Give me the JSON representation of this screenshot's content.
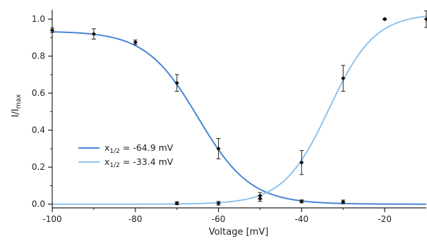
{
  "chart_data": {
    "type": "line",
    "title": "",
    "xlabel": "Voltage [mV]",
    "ylabel_main": "I/I",
    "ylabel_sub": "max",
    "xlim": [
      -100,
      -10
    ],
    "ylim": [
      -0.02,
      1.05
    ],
    "xticks": [
      -100,
      -80,
      -60,
      -40,
      -20
    ],
    "yticks": [
      0.0,
      0.2,
      0.4,
      0.6,
      0.8,
      1.0
    ],
    "xtick_labels": [
      "-100",
      "-80",
      "-60",
      "-40",
      "-20"
    ],
    "ytick_labels": [
      "0.0",
      "0.2",
      "0.4",
      "0.6",
      "0.8",
      "1.0"
    ],
    "grid": false,
    "legend_position": "bottom-left",
    "series": [
      {
        "legend_prefix": "x",
        "legend_sub": "1/2",
        "legend_value": " = -64.9 mV",
        "color": "#4a84d6",
        "fit": {
          "v_half": -64.9,
          "k": 6.3,
          "max": 0.935,
          "decreasing": true
        },
        "x": [
          -100,
          -90,
          -80,
          -70,
          -60,
          -50,
          -40,
          -30
        ],
        "y": [
          0.94,
          0.92,
          0.875,
          0.655,
          0.3,
          0.03,
          0.015,
          0.012
        ],
        "err": [
          0.012,
          0.028,
          0.012,
          0.045,
          0.055,
          0.015,
          0.008,
          0.01
        ]
      },
      {
        "legend_prefix": "x",
        "legend_sub": "1/2",
        "legend_value": " =  -33.4 mV",
        "color": "#8ec3ee",
        "fit": {
          "v_half": -33.4,
          "k": 5.5,
          "max": 1.03,
          "decreasing": false
        },
        "x": [
          -70,
          -60,
          -50,
          -40,
          -30,
          -20,
          -10
        ],
        "y": [
          0.005,
          0.005,
          0.045,
          0.225,
          0.68,
          1.0,
          1.0
        ],
        "err": [
          0.008,
          0.01,
          0.018,
          0.065,
          0.07,
          0.004,
          0.045
        ]
      }
    ]
  }
}
